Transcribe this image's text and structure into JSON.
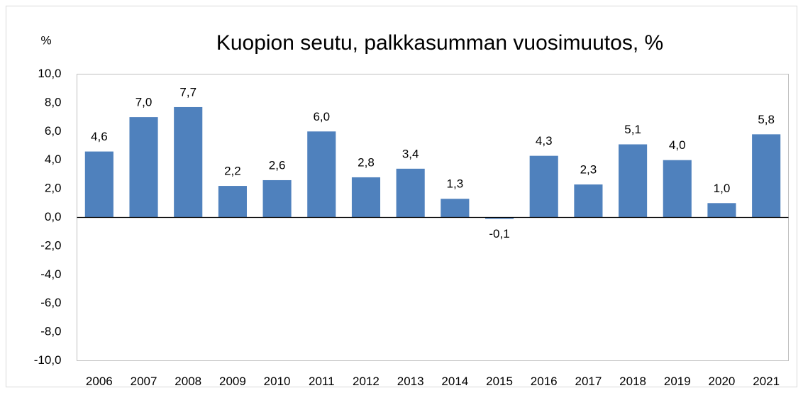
{
  "chart_data": {
    "type": "bar",
    "title": "Kuopion seutu, palkkasumman vuosimuutos, %",
    "y_label": "%",
    "categories": [
      "2006",
      "2007",
      "2008",
      "2009",
      "2010",
      "2011",
      "2012",
      "2013",
      "2014",
      "2015",
      "2016",
      "2017",
      "2018",
      "2019",
      "2020",
      "2021"
    ],
    "values": [
      4.6,
      7.0,
      7.7,
      2.2,
      2.6,
      6.0,
      2.8,
      3.4,
      1.3,
      -0.1,
      4.3,
      2.3,
      5.1,
      4.0,
      1.0,
      5.8
    ],
    "value_labels": [
      "4,6",
      "7,0",
      "7,7",
      "2,2",
      "2,6",
      "6,0",
      "2,8",
      "3,4",
      "1,3",
      "-0,1",
      "4,3",
      "2,3",
      "5,1",
      "4,0",
      "1,0",
      "5,8"
    ],
    "color": "#4f81bd",
    "ylim": [
      -10,
      10
    ],
    "yticks": [
      {
        "value": -10,
        "label": "-10,0"
      },
      {
        "value": -8,
        "label": "-8,0"
      },
      {
        "value": -6,
        "label": "-6,0"
      },
      {
        "value": -4,
        "label": "-4,0"
      },
      {
        "value": -2,
        "label": "-2,0"
      },
      {
        "value": 0,
        "label": "0,0"
      },
      {
        "value": 2,
        "label": "2,0"
      },
      {
        "value": 4,
        "label": "4,0"
      },
      {
        "value": 6,
        "label": "6,0"
      },
      {
        "value": 8,
        "label": "8,0"
      },
      {
        "value": 10,
        "label": "10,0"
      }
    ],
    "grid": false
  }
}
